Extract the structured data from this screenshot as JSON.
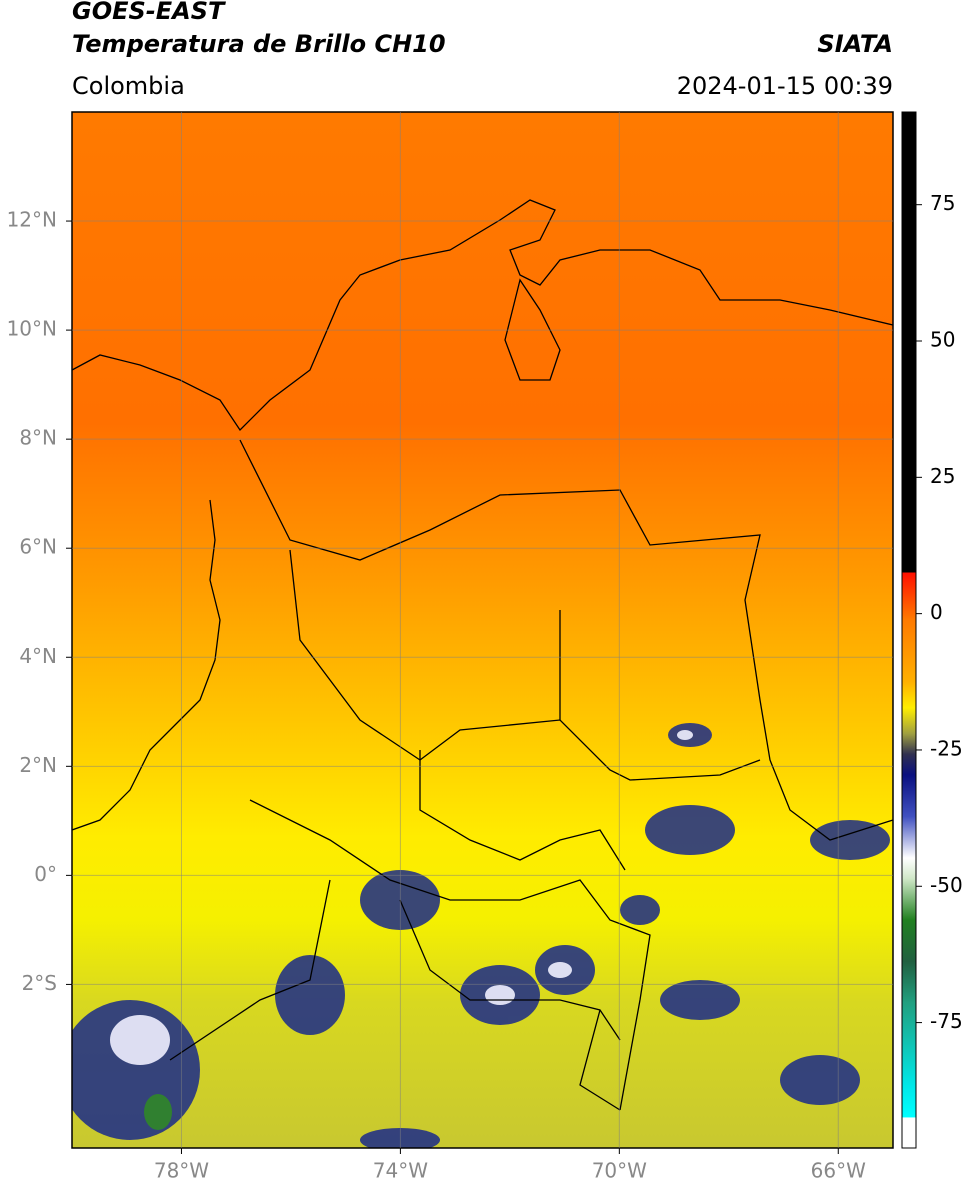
{
  "header": {
    "title_line1": "GOES-EAST",
    "title_line2": "Temperatura de Brillo CH10",
    "source": "SIATA",
    "region": "Colombia",
    "datetime": "2024-01-15 00:39"
  },
  "map": {
    "lon_lim": [
      -80,
      -65
    ],
    "lat_lim": [
      -5,
      14
    ],
    "lon_ticks": [
      {
        "value": -78,
        "label": "78°W"
      },
      {
        "value": -74,
        "label": "74°W"
      },
      {
        "value": -70,
        "label": "70°W"
      },
      {
        "value": -66,
        "label": "66°W"
      }
    ],
    "lat_ticks": [
      {
        "value": 12,
        "label": "12°N"
      },
      {
        "value": 10,
        "label": "10°N"
      },
      {
        "value": 8,
        "label": "8°N"
      },
      {
        "value": 6,
        "label": "6°N"
      },
      {
        "value": 4,
        "label": "4°N"
      },
      {
        "value": 2,
        "label": "2°N"
      },
      {
        "value": 0,
        "label": "0°"
      },
      {
        "value": -2,
        "label": "2°S"
      }
    ],
    "grid": true
  },
  "colorbar": {
    "lim": [
      -98,
      92
    ],
    "ticks": [
      75,
      50,
      25,
      0,
      -25,
      -50,
      -75
    ]
  }
}
